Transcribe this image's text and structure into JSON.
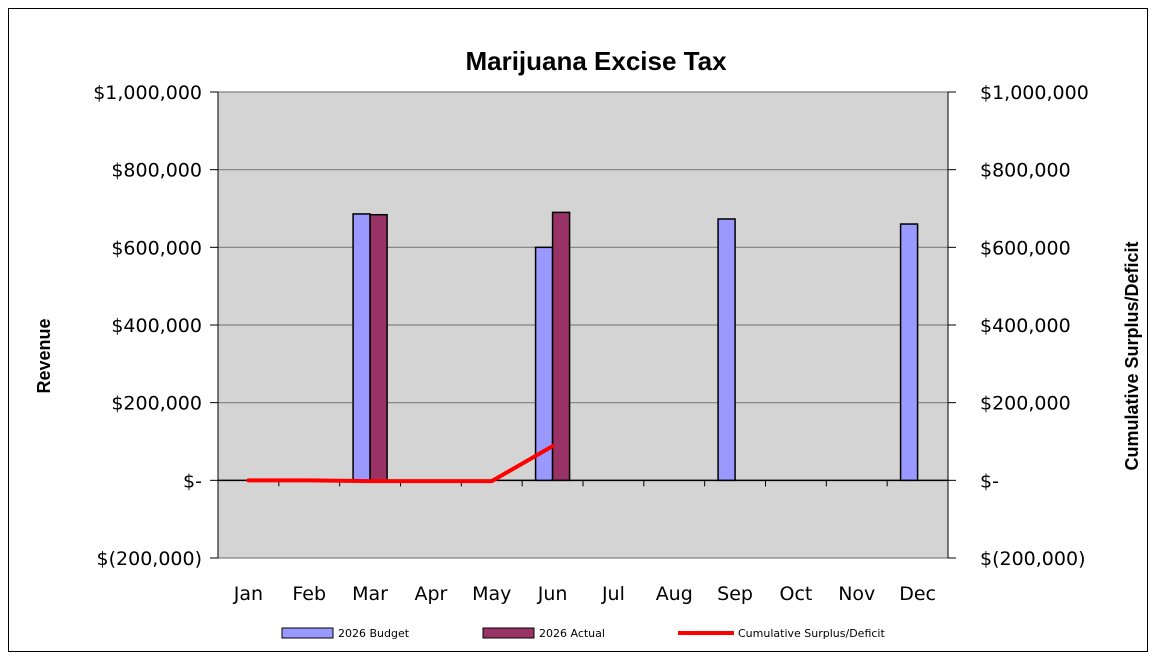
{
  "chart_data": {
    "type": "bar",
    "title": "Marijuana Excise Tax",
    "ylabel": "Revenue",
    "y2label": "Cumulative Surplus/Deficit",
    "categories": [
      "Jan",
      "Feb",
      "Mar",
      "Apr",
      "May",
      "Jun",
      "Jul",
      "Aug",
      "Sep",
      "Oct",
      "Nov",
      "Dec"
    ],
    "ylim": [
      -200000,
      1000000
    ],
    "y2lim": [
      -200000,
      1000000
    ],
    "y_ticks": [
      1000000,
      800000,
      600000,
      400000,
      200000,
      0,
      -200000
    ],
    "y_tick_labels": [
      "$1,000,000",
      "$800,000",
      "$600,000",
      "$400,000",
      "$200,000",
      "$-",
      "$(200,000)"
    ],
    "grid": true,
    "legend_position": "bottom",
    "series": [
      {
        "name": "2026 Budget",
        "kind": "bar",
        "color": "#9999FF",
        "values": [
          0,
          0,
          686000,
          0,
          0,
          600000,
          0,
          0,
          673000,
          0,
          0,
          660000
        ]
      },
      {
        "name": "2026 Actual",
        "kind": "bar",
        "color": "#993366",
        "values": [
          null,
          null,
          684000,
          null,
          null,
          690000,
          null,
          null,
          null,
          null,
          null,
          null
        ]
      },
      {
        "name": "Cumulative Surplus/Deficit",
        "kind": "line",
        "axis": "right",
        "color": "#FF0000",
        "values": [
          0,
          0,
          -2000,
          -2000,
          -2000,
          88000,
          null,
          null,
          null,
          null,
          null,
          null
        ]
      }
    ]
  }
}
